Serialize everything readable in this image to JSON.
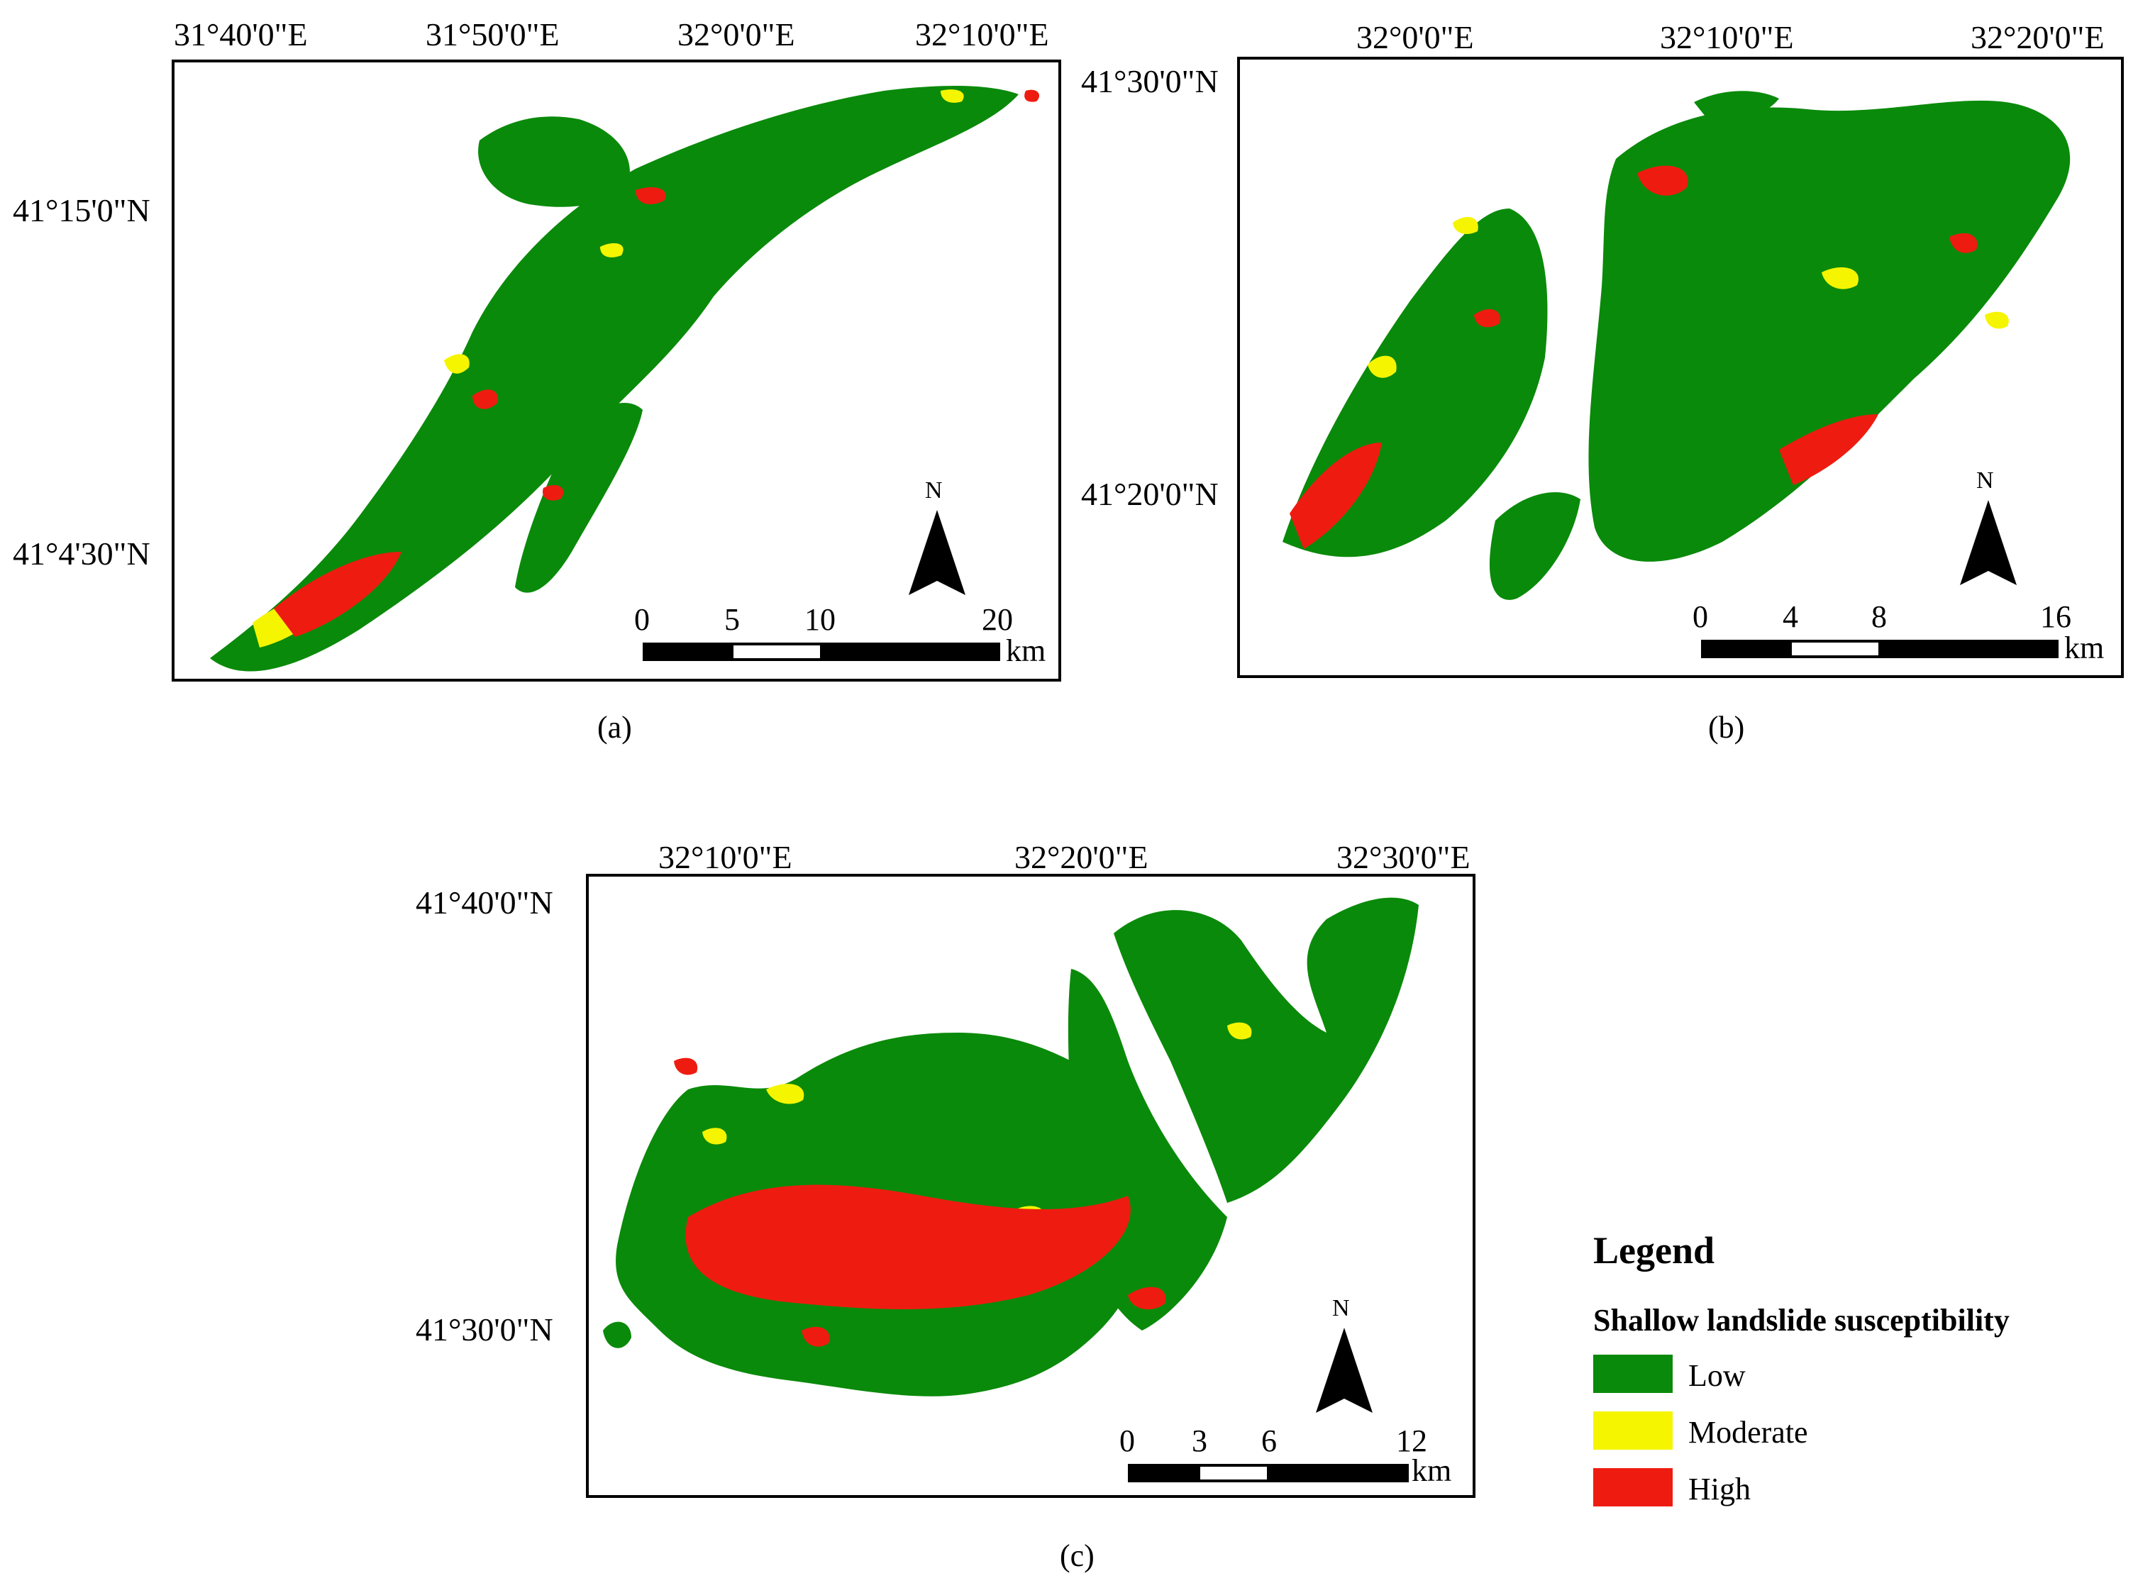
{
  "colors": {
    "low": "#0a8a0a",
    "moderate": "#f5f500",
    "high": "#ee1c10",
    "frame": "#000000"
  },
  "panels": [
    {
      "caption": "(a)",
      "lon_labels": [
        "31°40'0\"E",
        "31°50'0\"E",
        "32°0'0\"E",
        "32°10'0\"E"
      ],
      "lat_labels": [
        "41°15'0\"N",
        "41°4'30\"N"
      ],
      "north": "N",
      "scale_ticks": [
        "0",
        "5",
        "10",
        "20"
      ],
      "scale_unit": "km"
    },
    {
      "caption": "(b)",
      "lon_labels": [
        "32°0'0\"E",
        "32°10'0\"E",
        "32°20'0\"E"
      ],
      "lat_labels": [
        "41°30'0\"N",
        "41°20'0\"N"
      ],
      "north": "N",
      "scale_ticks": [
        "0",
        "4",
        "8",
        "16"
      ],
      "scale_unit": "km"
    },
    {
      "caption": "(c)",
      "lon_labels": [
        "32°10'0\"E",
        "32°20'0\"E",
        "32°30'0\"E"
      ],
      "lat_labels": [
        "41°40'0\"N",
        "41°30'0\"N"
      ],
      "north": "N",
      "scale_ticks": [
        "0",
        "3",
        "6",
        "12"
      ],
      "scale_unit": "km"
    }
  ],
  "legend": {
    "title": "Legend",
    "subtitle": "Shallow landslide susceptibility",
    "items": [
      {
        "label": "Low",
        "color_key": "low"
      },
      {
        "label": "Moderate",
        "color_key": "moderate"
      },
      {
        "label": "High",
        "color_key": "high"
      }
    ]
  }
}
